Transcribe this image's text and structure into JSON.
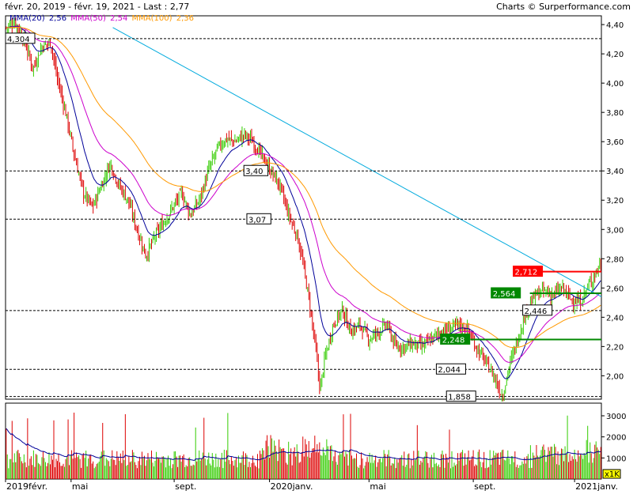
{
  "header": {
    "period": "févr. 20, 2019 - févr. 19, 2021 - Last : 2,77",
    "credit": "Charts © Surperformance.com"
  },
  "legend": {
    "mma20_label": "MMA(20)",
    "mma20_value": "2,56",
    "mma50_label": "MMA(50)",
    "mma50_value": "2,54",
    "mma100_label": "MMA(100)",
    "mma100_value": "2,36"
  },
  "colors": {
    "up": "#33cc00",
    "down": "#dd0000",
    "mma20": "#000099",
    "mma50": "#cc00cc",
    "mma100": "#ff9900",
    "trend": "#00aadd",
    "resistance": "#ff0000",
    "support": "#008800"
  },
  "chart_data": {
    "type": "line",
    "price_axis": {
      "ylim": [
        1.84,
        4.46
      ],
      "ticks": [
        "4,40",
        "4,20",
        "4,00",
        "3,80",
        "3,60",
        "3,40",
        "3,20",
        "3,00",
        "2,80",
        "2,60",
        "2,40",
        "2,20",
        "2,00"
      ]
    },
    "volume_axis": {
      "ylim": [
        0,
        3600
      ],
      "ticks": [
        "3000",
        "2000",
        "1000"
      ],
      "unit_badge": "x1K"
    },
    "x_axis": {
      "ticks": [
        {
          "label": "2019févr.",
          "pos": 0.0
        },
        {
          "label": "mai",
          "pos": 0.11
        },
        {
          "label": "sept.",
          "pos": 0.283
        },
        {
          "label": "2020janv.",
          "pos": 0.443
        },
        {
          "label": "mai",
          "pos": 0.61
        },
        {
          "label": "sept.",
          "pos": 0.785
        },
        {
          "label": "2021janv.",
          "pos": 0.955
        }
      ]
    },
    "anchors": [
      [
        0,
        4.38
      ],
      [
        0.015,
        4.42
      ],
      [
        0.03,
        4.3
      ],
      [
        0.045,
        4.1
      ],
      [
        0.06,
        4.25
      ],
      [
        0.075,
        4.28
      ],
      [
        0.085,
        4.05
      ],
      [
        0.1,
        3.8
      ],
      [
        0.115,
        3.5
      ],
      [
        0.13,
        3.25
      ],
      [
        0.145,
        3.15
      ],
      [
        0.16,
        3.3
      ],
      [
        0.175,
        3.45
      ],
      [
        0.19,
        3.3
      ],
      [
        0.205,
        3.2
      ],
      [
        0.22,
        3.0
      ],
      [
        0.235,
        2.82
      ],
      [
        0.25,
        2.95
      ],
      [
        0.265,
        3.05
      ],
      [
        0.28,
        3.15
      ],
      [
        0.295,
        3.25
      ],
      [
        0.31,
        3.1
      ],
      [
        0.325,
        3.2
      ],
      [
        0.34,
        3.4
      ],
      [
        0.355,
        3.55
      ],
      [
        0.37,
        3.62
      ],
      [
        0.385,
        3.6
      ],
      [
        0.4,
        3.65
      ],
      [
        0.415,
        3.6
      ],
      [
        0.43,
        3.5
      ],
      [
        0.445,
        3.4
      ],
      [
        0.46,
        3.3
      ],
      [
        0.475,
        3.1
      ],
      [
        0.49,
        2.95
      ],
      [
        0.5,
        2.75
      ],
      [
        0.51,
        2.5
      ],
      [
        0.52,
        2.2
      ],
      [
        0.528,
        1.9
      ],
      [
        0.535,
        2.1
      ],
      [
        0.55,
        2.35
      ],
      [
        0.565,
        2.45
      ],
      [
        0.58,
        2.3
      ],
      [
        0.595,
        2.35
      ],
      [
        0.61,
        2.25
      ],
      [
        0.625,
        2.3
      ],
      [
        0.64,
        2.35
      ],
      [
        0.655,
        2.2
      ],
      [
        0.67,
        2.2
      ],
      [
        0.685,
        2.22
      ],
      [
        0.7,
        2.2
      ],
      [
        0.715,
        2.25
      ],
      [
        0.73,
        2.3
      ],
      [
        0.745,
        2.32
      ],
      [
        0.76,
        2.35
      ],
      [
        0.775,
        2.32
      ],
      [
        0.79,
        2.2
      ],
      [
        0.805,
        2.1
      ],
      [
        0.82,
        2.0
      ],
      [
        0.83,
        1.9
      ],
      [
        0.835,
        1.86
      ],
      [
        0.845,
        2.05
      ],
      [
        0.86,
        2.25
      ],
      [
        0.875,
        2.45
      ],
      [
        0.89,
        2.55
      ],
      [
        0.905,
        2.58
      ],
      [
        0.92,
        2.55
      ],
      [
        0.935,
        2.6
      ],
      [
        0.95,
        2.52
      ],
      [
        0.965,
        2.5
      ],
      [
        0.98,
        2.62
      ],
      [
        1.0,
        2.77
      ]
    ],
    "series": [
      {
        "name": "MMA(20)"
      },
      {
        "name": "MMA(50)"
      },
      {
        "name": "MMA(100)"
      }
    ],
    "levels": [
      {
        "value": 4.304,
        "label": "4,304",
        "kind": "plain"
      },
      {
        "value": 3.4,
        "label": "3,40",
        "kind": "plain"
      },
      {
        "value": 3.07,
        "label": "3,07",
        "kind": "plain"
      },
      {
        "value": 2.712,
        "label": "2,712",
        "kind": "resistance"
      },
      {
        "value": 2.564,
        "label": "2,564",
        "kind": "support"
      },
      {
        "value": 2.446,
        "label": "2,446",
        "kind": "plain"
      },
      {
        "value": 2.248,
        "label": "2,248",
        "kind": "support"
      },
      {
        "value": 2.044,
        "label": "2,044",
        "kind": "plain"
      },
      {
        "value": 1.858,
        "label": "1,858",
        "kind": "plain"
      }
    ],
    "trendline": [
      [
        0.18,
        4.38
      ],
      [
        1.0,
        2.54
      ]
    ]
  }
}
